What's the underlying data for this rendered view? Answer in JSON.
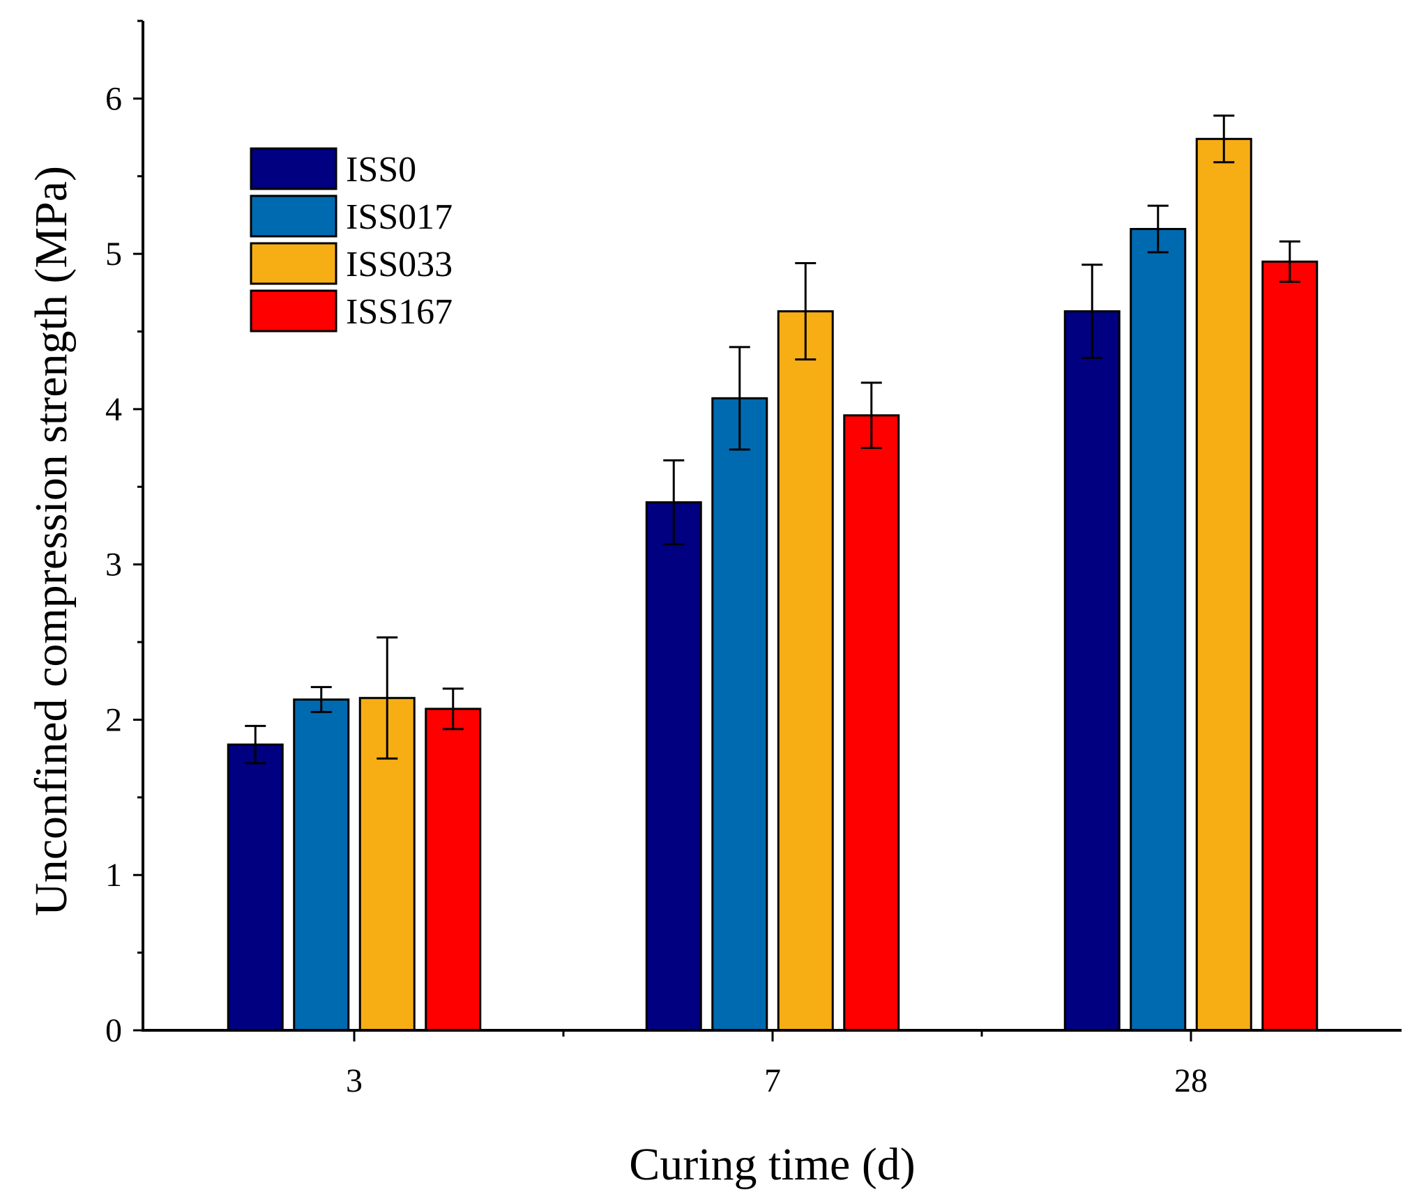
{
  "chart_data": {
    "type": "bar",
    "title": "",
    "xlabel": "Curing time (d)",
    "ylabel": "Unconfined compression strength (MPa)",
    "categories": [
      "3",
      "7",
      "28"
    ],
    "ylim": [
      0,
      6.5
    ],
    "yticks": [
      "0",
      "1",
      "2",
      "3",
      "4",
      "5",
      "6"
    ],
    "legend_position": "top-left",
    "grid": false,
    "error_bars": true,
    "series": [
      {
        "name": "ISS0",
        "color": "#000080",
        "values": [
          1.84,
          3.4,
          4.63
        ],
        "errors": [
          0.12,
          0.27,
          0.3
        ]
      },
      {
        "name": "ISS017",
        "color": "#006AB0",
        "values": [
          2.13,
          4.07,
          5.16
        ],
        "errors": [
          0.08,
          0.33,
          0.15
        ]
      },
      {
        "name": "ISS033",
        "color": "#F7AE15",
        "values": [
          2.14,
          4.63,
          5.74
        ],
        "errors": [
          0.39,
          0.31,
          0.15
        ]
      },
      {
        "name": "ISS167",
        "color": "#FF0000",
        "values": [
          2.07,
          3.96,
          4.95
        ],
        "errors": [
          0.13,
          0.21,
          0.13
        ]
      }
    ]
  }
}
